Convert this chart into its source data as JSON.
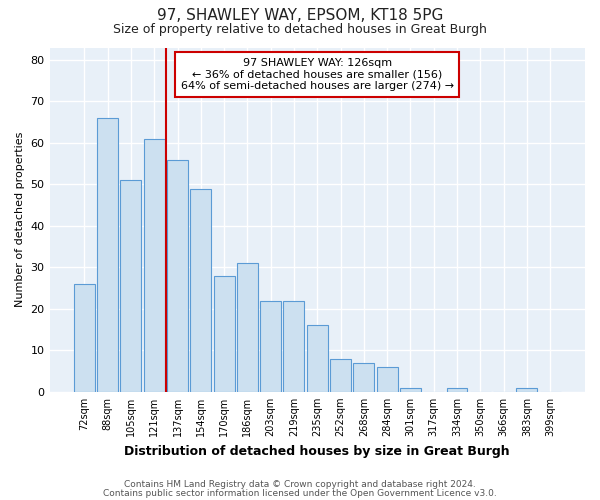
{
  "title1": "97, SHAWLEY WAY, EPSOM, KT18 5PG",
  "title2": "Size of property relative to detached houses in Great Burgh",
  "xlabel": "Distribution of detached houses by size in Great Burgh",
  "ylabel": "Number of detached properties",
  "categories": [
    "72sqm",
    "88sqm",
    "105sqm",
    "121sqm",
    "137sqm",
    "154sqm",
    "170sqm",
    "186sqm",
    "203sqm",
    "219sqm",
    "235sqm",
    "252sqm",
    "268sqm",
    "284sqm",
    "301sqm",
    "317sqm",
    "334sqm",
    "350sqm",
    "366sqm",
    "383sqm",
    "399sqm"
  ],
  "values": [
    26,
    66,
    51,
    61,
    56,
    49,
    28,
    31,
    22,
    22,
    16,
    8,
    7,
    6,
    1,
    0,
    1,
    0,
    0,
    1,
    0
  ],
  "bar_color": "#cce0f0",
  "bar_edge_color": "#5b9bd5",
  "vline_x": 3.5,
  "vline_color": "#cc0000",
  "annotation_title": "97 SHAWLEY WAY: 126sqm",
  "annotation_line1": "← 36% of detached houses are smaller (156)",
  "annotation_line2": "64% of semi-detached houses are larger (274) →",
  "annotation_box_color": "#cc0000",
  "ylim": [
    0,
    83
  ],
  "yticks": [
    0,
    10,
    20,
    30,
    40,
    50,
    60,
    70,
    80
  ],
  "footer1": "Contains HM Land Registry data © Crown copyright and database right 2024.",
  "footer2": "Contains public sector information licensed under the Open Government Licence v3.0.",
  "bg_color": "#e8f0f8",
  "fig_color": "#ffffff",
  "grid_color": "#ffffff"
}
